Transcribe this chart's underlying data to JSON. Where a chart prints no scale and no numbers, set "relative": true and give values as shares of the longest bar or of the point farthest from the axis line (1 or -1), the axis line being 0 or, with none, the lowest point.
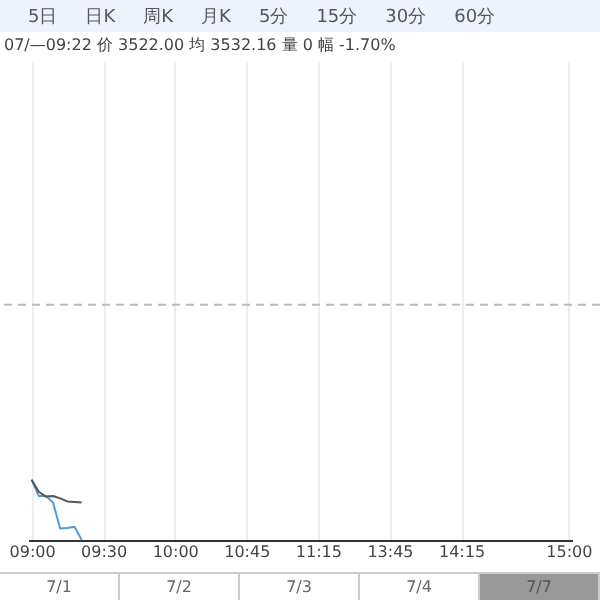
{
  "chart_data": {
    "type": "line",
    "relative": true,
    "grid": "x",
    "line_style": "solid",
    "marker": "none",
    "categories": [
      "09:00",
      null,
      null,
      null,
      null,
      null,
      null,
      null,
      null,
      null,
      "09:30",
      null,
      null,
      null,
      null,
      null,
      null,
      null,
      null,
      null,
      "10:00",
      null,
      null,
      null,
      null,
      null,
      null,
      null,
      null,
      null,
      "10:45",
      null,
      null,
      null,
      null,
      null,
      null,
      null,
      null,
      null,
      "11:15",
      null,
      null,
      null,
      null,
      null,
      null,
      null,
      null,
      null,
      "13:45",
      null,
      null,
      null,
      null,
      null,
      null,
      null,
      null,
      null,
      "14:15",
      null,
      null,
      null,
      null,
      null,
      null,
      null,
      null,
      null,
      null,
      null,
      null,
      null,
      null,
      "15:00"
    ],
    "series": [
      {
        "color": "#4a9fd8",
        "values": [
          1,
          0.73,
          0.73,
          0.62,
          0.19,
          0.2,
          0.22,
          0,
          null,
          null,
          null,
          null,
          null,
          null,
          null,
          null,
          null,
          null,
          null,
          null,
          null,
          null,
          null,
          null,
          null,
          null,
          null,
          null,
          null,
          null,
          null,
          null,
          null,
          null,
          null,
          null,
          null,
          null,
          null,
          null,
          null,
          null,
          null,
          null,
          null,
          null,
          null,
          null,
          null,
          null,
          null,
          null,
          null,
          null,
          null,
          null,
          null,
          null,
          null,
          null,
          null,
          null,
          null,
          null,
          null,
          null,
          null,
          null,
          null,
          null,
          null,
          null,
          null,
          null,
          null,
          null
        ]
      },
      {
        "color": "#555555",
        "values": [
          1,
          0.8,
          0.72,
          0.73,
          0.69,
          0.64,
          0.63,
          0.62,
          null,
          null,
          null,
          null,
          null,
          null,
          null,
          null,
          null,
          null,
          null,
          null,
          null,
          null,
          null,
          null,
          null,
          null,
          null,
          null,
          null,
          null,
          null,
          null,
          null,
          null,
          null,
          null,
          null,
          null,
          null,
          null,
          null,
          null,
          null,
          null,
          null,
          null,
          null,
          null,
          null,
          null,
          null,
          null,
          null,
          null,
          null,
          null,
          null,
          null,
          null,
          null,
          null,
          null,
          null,
          null,
          null,
          null,
          null,
          null,
          null,
          null,
          null,
          null,
          null,
          null,
          null,
          null
        ]
      }
    ],
    "ref_lines": [
      {
        "axis": "y",
        "value": 3.9,
        "color": "#bbbbbb",
        "line_style": "dashed"
      }
    ],
    "annotations": [
      "5日",
      "日K",
      "周K",
      "月K",
      "5分",
      "15分",
      "30分",
      "60分",
      "07/—09:22 价 3522.00 均 3532.16 量 0 幅 -1.70%",
      "7/1",
      "7/2",
      "7/3",
      "7/4",
      "7/7"
    ]
  }
}
